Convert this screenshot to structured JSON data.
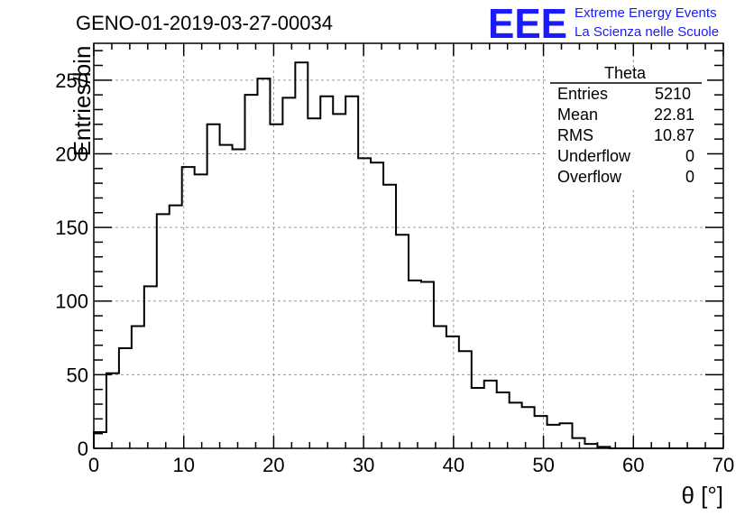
{
  "title": "GENO-01-2019-03-27-00034",
  "logo": {
    "letters": "EEE",
    "line1": "Extreme Energy Events",
    "line2": "La Scienza nelle Scuole",
    "color": "#1a1aff"
  },
  "stats": {
    "name": "Theta",
    "rows": [
      {
        "label": "Entries",
        "value": "5210"
      },
      {
        "label": "Mean",
        "value": "22.81"
      },
      {
        "label": "RMS",
        "value": "10.87"
      },
      {
        "label": "Underflow",
        "value": "0"
      },
      {
        "label": "Overflow",
        "value": "0"
      }
    ]
  },
  "chart_data": {
    "type": "histogram",
    "title": "GENO-01-2019-03-27-00034",
    "xlabel": "θ [°]",
    "ylabel": "Entries/bin",
    "xlim": [
      0,
      70
    ],
    "ylim": [
      0,
      275
    ],
    "grid": true,
    "legend": "stats box top-right",
    "x_ticks": [
      0,
      10,
      20,
      30,
      40,
      50,
      60,
      70
    ],
    "y_ticks": [
      0,
      50,
      100,
      150,
      200,
      250
    ],
    "bin_width": 1.4,
    "bin_edges_start": 0,
    "values": [
      11,
      51,
      68,
      83,
      110,
      159,
      165,
      191,
      186,
      220,
      206,
      203,
      240,
      251,
      220,
      238,
      262,
      224,
      239,
      227,
      239,
      197,
      194,
      179,
      145,
      114,
      113,
      83,
      76,
      66,
      41,
      46,
      38,
      31,
      28,
      22,
      16,
      17,
      7,
      3,
      1,
      0,
      0,
      0,
      0,
      0,
      0,
      0,
      0,
      0
    ]
  }
}
